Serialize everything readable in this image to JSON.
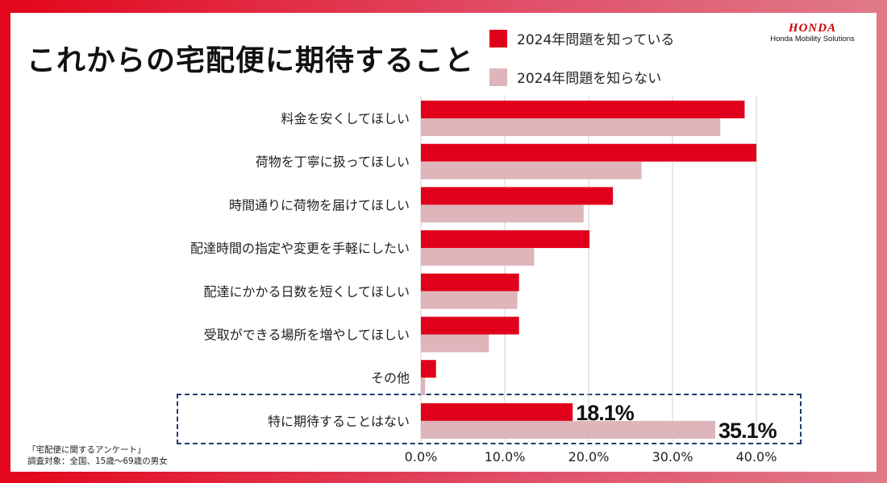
{
  "title": "これからの宅配便に期待すること",
  "brand": {
    "logo_text": "HONDA",
    "subtitle": "Honda Mobility Solutions"
  },
  "footnote": {
    "line1": "「宅配便に関するアンケート」",
    "line2": "調査対象：全国、15歳〜69歳の男女"
  },
  "colors": {
    "aware": "#e0001b",
    "unaware": "#deb5bb",
    "highlight_border": "#1f3a6b",
    "frame": "#e3051b"
  },
  "chart_data": {
    "type": "bar",
    "orientation": "horizontal",
    "categories": [
      "料金を安くしてほしい",
      "荷物を丁寧に扱ってほしい",
      "時間通りに荷物を届けてほしい",
      "配達時間の指定や変更を手軽にしたい",
      "配達にかかる日数を短くしてほしい",
      "受取ができる場所を増やしてほしい",
      "その他",
      "特に期待することはない"
    ],
    "series": [
      {
        "name": "2024年問題を知っている",
        "values": [
          38.6,
          40.0,
          22.9,
          20.1,
          11.7,
          11.7,
          1.8,
          18.1
        ]
      },
      {
        "name": "2024年問題を知らない",
        "values": [
          35.7,
          26.3,
          19.4,
          13.5,
          11.5,
          8.1,
          0.5,
          35.1
        ]
      }
    ],
    "data_labels": [
      {
        "category_index": 7,
        "series_index": 0,
        "text": "18.1%"
      },
      {
        "category_index": 7,
        "series_index": 1,
        "text": "35.1%"
      }
    ],
    "xlim": [
      0,
      40
    ],
    "x_ticks": [
      "0.0%",
      "10.0%",
      "20.0%",
      "30.0%",
      "40.0%"
    ],
    "grid": true,
    "legend_position": "top"
  }
}
